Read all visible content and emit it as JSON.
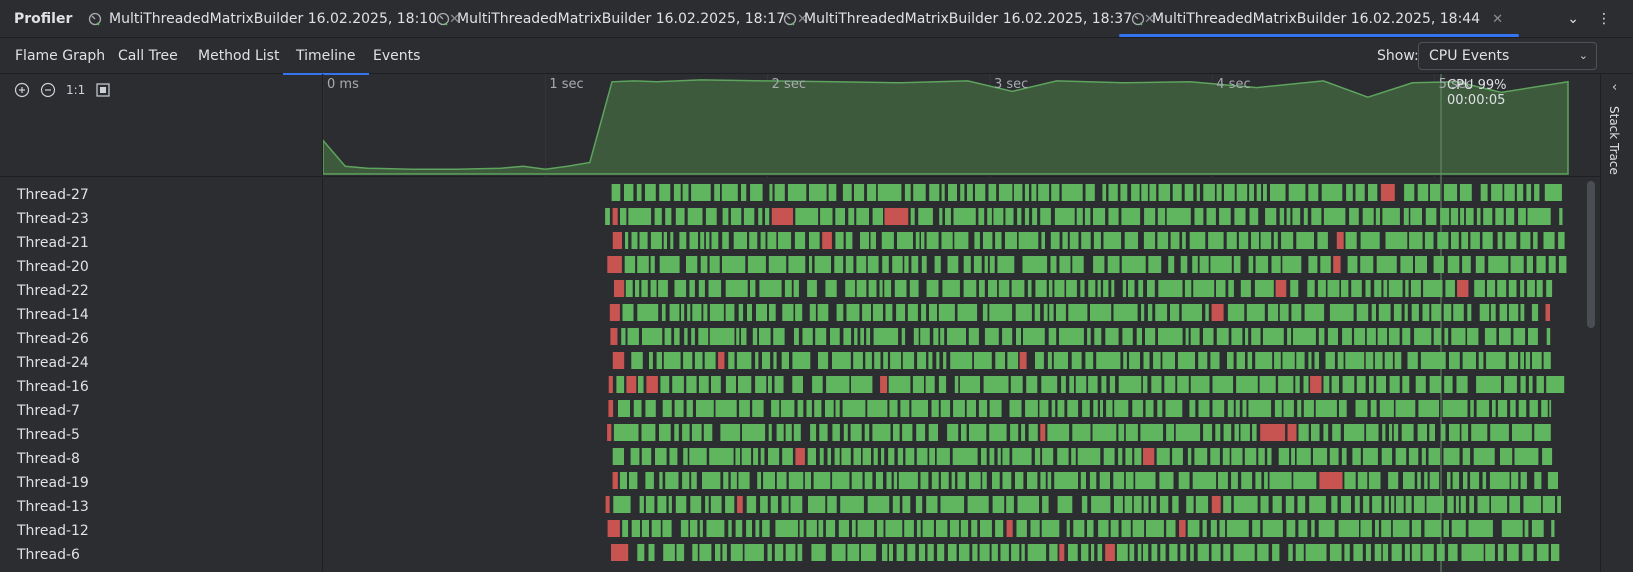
{
  "app": {
    "title": "Profiler"
  },
  "sessions": [
    {
      "label": "MultiThreadedMatrixBuilder 16.02.2025, 18:10",
      "active": false
    },
    {
      "label": "MultiThreadedMatrixBuilder 16.02.2025, 18:17",
      "active": false
    },
    {
      "label": "MultiThreadedMatrixBuilder 16.02.2025, 18:37",
      "active": false
    },
    {
      "label": "MultiThreadedMatrixBuilder 16.02.2025, 18:44",
      "active": true
    }
  ],
  "view_tabs": [
    {
      "label": "Flame Graph",
      "active": false
    },
    {
      "label": "Call Tree",
      "active": false
    },
    {
      "label": "Method List",
      "active": false
    },
    {
      "label": "Timeline",
      "active": true
    },
    {
      "label": "Events",
      "active": false
    }
  ],
  "show": {
    "label": "Show:",
    "value": "CPU Events"
  },
  "zoom": {
    "reset_label": "1:1"
  },
  "timeline": {
    "ticks": [
      "0 ms",
      "1 sec",
      "2 sec",
      "3 sec",
      "4 sec",
      "5 sec"
    ],
    "cursor": {
      "cpu": "CPU 99%",
      "time": "00:00:05"
    }
  },
  "chart_data": {
    "type": "area",
    "title": "",
    "xlabel": "",
    "ylabel": "",
    "x": [
      0.0,
      0.1,
      0.2,
      0.4,
      0.6,
      0.8,
      0.9,
      1.0,
      1.1,
      1.2,
      1.3,
      1.4,
      1.5,
      1.7,
      2.0,
      2.3,
      2.6,
      2.9,
      3.1,
      3.3,
      3.6,
      3.9,
      4.2,
      4.5,
      4.7,
      4.9,
      5.1,
      5.3,
      5.6
    ],
    "values": [
      35,
      8,
      6,
      5,
      5,
      6,
      8,
      5,
      8,
      12,
      96,
      97,
      96,
      98,
      97,
      96,
      95,
      97,
      86,
      97,
      95,
      96,
      90,
      97,
      80,
      95,
      96,
      85,
      96
    ],
    "ylim": [
      0,
      100
    ],
    "xlim": [
      0,
      5.6
    ],
    "unit": "CPU %"
  },
  "threads": [
    "Thread-27",
    "Thread-23",
    "Thread-21",
    "Thread-20",
    "Thread-22",
    "Thread-14",
    "Thread-26",
    "Thread-24",
    "Thread-16",
    "Thread-7",
    "Thread-5",
    "Thread-8",
    "Thread-19",
    "Thread-13",
    "Thread-12",
    "Thread-6"
  ],
  "stack_trace": {
    "label": "Stack Trace"
  },
  "colors": {
    "running": "#5fb65f",
    "blocked": "#c75450",
    "area_fill": "#3d5a3d",
    "area_stroke": "#5ea35e",
    "accent": "#3574f0"
  }
}
